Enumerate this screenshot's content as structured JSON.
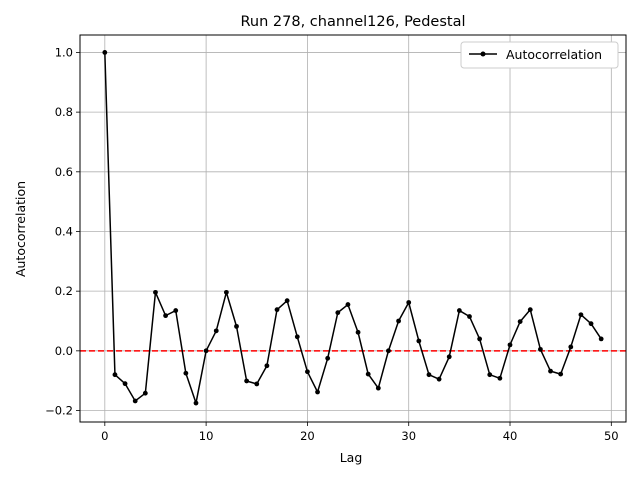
{
  "chart_data": {
    "type": "line",
    "title": "Run 278, channel126, Pedestal",
    "xlabel": "Lag",
    "ylabel": "Autocorrelation",
    "xlim": [
      -2.45,
      51.45
    ],
    "ylim": [
      -0.2385,
      1.0585
    ],
    "grid": true,
    "legend_position": "top-right",
    "x_ticks": [
      0,
      10,
      20,
      30,
      40,
      50
    ],
    "y_ticks": [
      -0.2,
      0.0,
      0.2,
      0.4,
      0.6,
      0.8,
      1.0
    ],
    "x_tick_labels": [
      "0",
      "10",
      "20",
      "30",
      "40",
      "50"
    ],
    "y_tick_labels": [
      "−0.2",
      "0.0",
      "0.2",
      "0.4",
      "0.6",
      "0.8",
      "1.0"
    ],
    "reference_line": {
      "y": 0.0,
      "color": "#ff0000",
      "style": "dashed"
    },
    "series": [
      {
        "name": "Autocorrelation",
        "color": "#000000",
        "x": [
          0,
          1,
          2,
          3,
          4,
          5,
          6,
          7,
          8,
          9,
          10,
          11,
          12,
          13,
          14,
          15,
          16,
          17,
          18,
          19,
          20,
          21,
          22,
          23,
          24,
          25,
          26,
          27,
          28,
          29,
          30,
          31,
          32,
          33,
          34,
          35,
          36,
          37,
          38,
          39,
          40,
          41,
          42,
          43,
          44,
          45,
          46,
          47,
          48,
          49
        ],
        "values": [
          1.0,
          -0.08,
          -0.11,
          -0.168,
          -0.142,
          0.196,
          0.118,
          0.135,
          -0.075,
          -0.175,
          0.0,
          0.067,
          0.196,
          0.082,
          -0.101,
          -0.111,
          -0.05,
          0.138,
          0.168,
          0.047,
          -0.07,
          -0.138,
          -0.025,
          0.128,
          0.155,
          0.062,
          -0.078,
          -0.125,
          0.0,
          0.1,
          0.162,
          0.033,
          -0.08,
          -0.095,
          -0.02,
          0.135,
          0.115,
          0.04,
          -0.08,
          -0.092,
          0.02,
          0.098,
          0.138,
          0.005,
          -0.068,
          -0.078,
          0.013,
          0.121,
          0.091,
          0.04
        ]
      }
    ]
  }
}
